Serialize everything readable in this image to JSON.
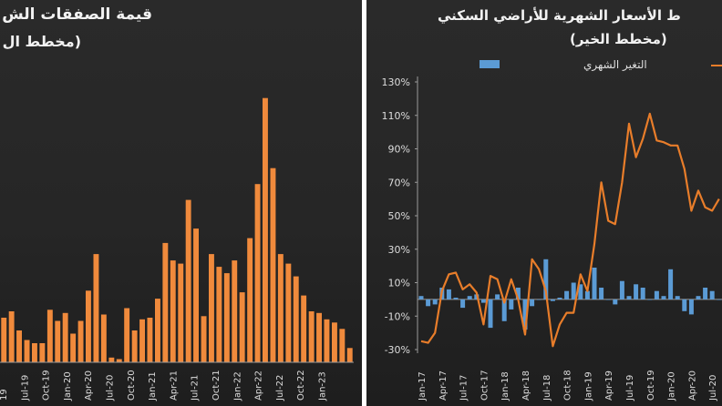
{
  "chart_data": [
    {
      "type": "bar",
      "title": "قيمة الصفقات الش",
      "subtitle": "(مخطط ال",
      "x_tick_labels": [
        "19",
        "Jul-19",
        "Oct-19",
        "Jan-20",
        "Apr-20",
        "Jul-20",
        "Oct-20",
        "Jan-21",
        "Apr-21",
        "Jul-21",
        "Oct-21",
        "Jan-22",
        "Apr-22",
        "Jul-22",
        "Oct-22",
        "Jan-23"
      ],
      "bar_color": "#f08a3c",
      "grid": false,
      "values": [
        28,
        32,
        20,
        14,
        12,
        12,
        33,
        26,
        31,
        18,
        26,
        45,
        68,
        30,
        3,
        2,
        34,
        20,
        27,
        28,
        40,
        75,
        64,
        62,
        102,
        84,
        29,
        68,
        60,
        56,
        64,
        44,
        78,
        112,
        166,
        122,
        68,
        62,
        54,
        42,
        32,
        31,
        27,
        25,
        21,
        9
      ]
    },
    {
      "type": "bar+line",
      "title": "ط الأسعار الشهرية للأراضي السكني",
      "subtitle": "(مخطط الخير)",
      "legend": {
        "position": "top",
        "entries": [
          {
            "name": "التغير الشهري",
            "color": "#5b9bd5",
            "kind": "bar"
          }
        ]
      },
      "y_tick_labels": [
        "130%",
        "110%",
        "90%",
        "70%",
        "50%",
        "30%",
        "10%",
        "-10%",
        "-30%"
      ],
      "ylim": [
        -30,
        130
      ],
      "x_tick_labels": [
        "Jan-17",
        "Apr-17",
        "Jul-17",
        "Oct-17",
        "Jan-18",
        "Apr-18",
        "Jul-18",
        "Oct-18",
        "Jan-19",
        "Apr-19",
        "Jul-19",
        "Oct-19",
        "Jan-20",
        "Apr-20",
        "Jul-20"
      ],
      "grid": false,
      "bar_color": "#5b9bd5",
      "line_color": "#e87d2a",
      "x": [
        "Jan-17",
        "Feb-17",
        "Mar-17",
        "Apr-17",
        "May-17",
        "Jun-17",
        "Jul-17",
        "Aug-17",
        "Sep-17",
        "Oct-17",
        "Nov-17",
        "Dec-17",
        "Jan-18",
        "Feb-18",
        "Mar-18",
        "Apr-18",
        "May-18",
        "Jun-18",
        "Jul-18",
        "Aug-18",
        "Sep-18",
        "Oct-18",
        "Nov-18",
        "Dec-18",
        "Jan-19",
        "Feb-19",
        "Mar-19",
        "Apr-19",
        "May-19",
        "Jun-19",
        "Jul-19",
        "Aug-19",
        "Sep-19",
        "Oct-19",
        "Nov-19",
        "Dec-19",
        "Jan-20",
        "Feb-20",
        "Mar-20",
        "Apr-20",
        "May-20",
        "Jun-20",
        "Jul-20",
        "Aug-20"
      ],
      "series": [
        {
          "kind": "bar",
          "values": [
            2,
            -4,
            -3,
            7,
            6,
            1,
            -5,
            2,
            3,
            -2,
            -17,
            3,
            -13,
            -6,
            7,
            -18,
            -4,
            0,
            24,
            -1,
            1,
            5,
            10,
            9,
            5,
            19,
            7,
            0,
            -3,
            11,
            2,
            9,
            7,
            0,
            5,
            2,
            18,
            2,
            -7,
            -9,
            2,
            7,
            5,
            0
          ]
        },
        {
          "kind": "line",
          "values": [
            -25,
            -26,
            -20,
            5,
            15,
            16,
            6,
            9,
            4,
            -15,
            14,
            12,
            -2,
            12,
            0,
            -21,
            24,
            18,
            5,
            -28,
            -15,
            -8,
            -8,
            15,
            5,
            33,
            70,
            47,
            45,
            70,
            105,
            85,
            96,
            111,
            95,
            94,
            92,
            92,
            78,
            53,
            65,
            55,
            53,
            60
          ]
        }
      ]
    }
  ]
}
